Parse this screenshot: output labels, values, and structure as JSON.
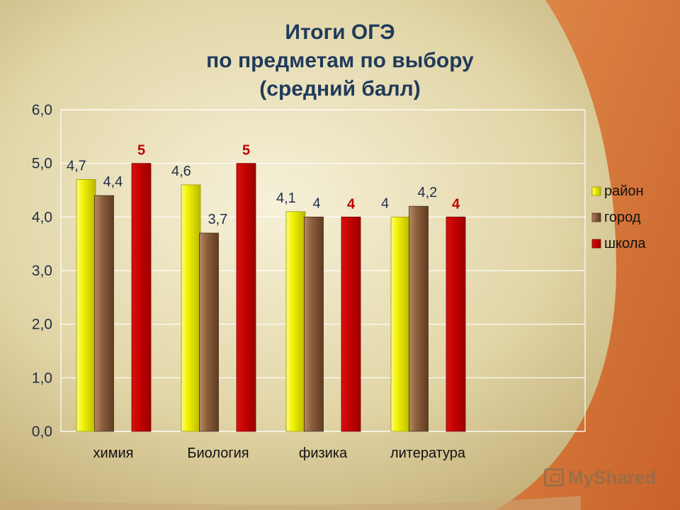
{
  "title_lines": [
    "Итоги ОГЭ",
    "по предметам по выбору",
    "(средний балл)"
  ],
  "watermark": "MyShared",
  "colors": {
    "district": "#e8e800",
    "city": "#8b5e3c",
    "school": "#c00000",
    "school_label": "#c00000",
    "label": "#1f2f4a"
  },
  "chart_data": {
    "type": "bar",
    "title": "Итоги ОГЭ по предметам по выбору (средний балл)",
    "categories": [
      "химия",
      "Биология",
      "физика",
      "литература"
    ],
    "series": [
      {
        "name": "район",
        "values": [
          4.7,
          4.6,
          4.1,
          4.0
        ],
        "labels": [
          "4,7",
          "4,6",
          "4,1",
          "4"
        ]
      },
      {
        "name": "город",
        "values": [
          4.4,
          3.7,
          4.0,
          4.2
        ],
        "labels": [
          "4,4",
          "3,7",
          "4",
          "4,2"
        ]
      },
      {
        "name": "школа",
        "values": [
          5,
          5,
          4,
          4
        ],
        "labels": [
          "5",
          "5",
          "4",
          "4"
        ]
      }
    ],
    "ylim": [
      0,
      6
    ],
    "yticks": [
      "0,0",
      "1,0",
      "2,0",
      "3,0",
      "4,0",
      "5,0",
      "6,0"
    ],
    "grid": true,
    "legend": "right"
  }
}
